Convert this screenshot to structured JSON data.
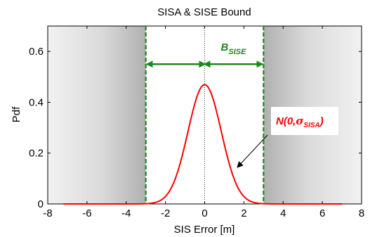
{
  "chart_data": {
    "type": "line",
    "title": "SISA & SISE Bound",
    "xlabel": "SIS Error [m]",
    "ylabel": "Pdf",
    "xlim": [
      -8,
      8
    ],
    "ylim": [
      0,
      0.7
    ],
    "xticks": [
      -8,
      -6,
      -4,
      -2,
      0,
      2,
      4,
      6,
      8
    ],
    "xtick_labels": [
      "-8",
      "-6",
      "-4",
      "-2",
      "0",
      "2",
      "4",
      "6",
      "8"
    ],
    "yticks": [
      0,
      0.2,
      0.4,
      0.6
    ],
    "ytick_labels": [
      "0",
      "0.2",
      "0.4",
      "0.6"
    ],
    "grid": false,
    "series": [
      {
        "name": "N(0,σSISA)",
        "color": "#ff0000",
        "mean": 0,
        "sigma": 0.85,
        "x_range": [
          -7.2,
          7
        ]
      }
    ],
    "bounds": {
      "values": [
        -3,
        3
      ],
      "color": "#1b8a1b",
      "arrow_y": 0.55
    },
    "shaded_regions": [
      {
        "x_range": [
          -8,
          -3
        ]
      },
      {
        "x_range": [
          3,
          8
        ]
      }
    ],
    "annotations": {
      "bound_label_main": "B",
      "bound_label_sub": "SISE",
      "dist_label_main": "N(0,",
      "dist_label_sigma": "σ",
      "dist_label_sub": "SISA",
      "dist_label_close": ")"
    }
  }
}
